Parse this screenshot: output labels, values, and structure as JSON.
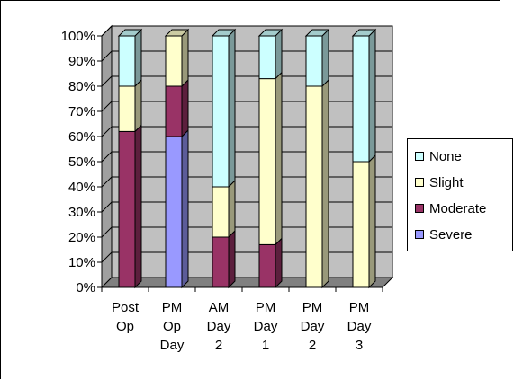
{
  "chart_data": {
    "type": "bar",
    "stacked": true,
    "percent": true,
    "categories": [
      [
        "Post",
        "Op"
      ],
      [
        "PM",
        "Op",
        "Day"
      ],
      [
        "AM",
        "Day",
        "2"
      ],
      [
        "PM",
        "Day",
        "1"
      ],
      [
        "PM",
        "Day",
        "2"
      ],
      [
        "PM",
        "Day",
        "3"
      ]
    ],
    "series": [
      {
        "name": "Severe",
        "color": "#9999ff",
        "values": [
          0,
          60,
          0,
          0,
          0,
          0
        ]
      },
      {
        "name": "Moderate",
        "color": "#993366",
        "values": [
          62,
          20,
          20,
          17,
          0,
          0
        ]
      },
      {
        "name": "Slight",
        "color": "#ffffcc",
        "values": [
          18,
          20,
          20,
          66,
          80,
          50
        ]
      },
      {
        "name": "None",
        "color": "#ccffff",
        "values": [
          20,
          0,
          60,
          17,
          20,
          50
        ]
      }
    ],
    "yticks": [
      "0%",
      "10%",
      "20%",
      "30%",
      "40%",
      "50%",
      "60%",
      "70%",
      "80%",
      "90%",
      "100%"
    ],
    "ylim": [
      0,
      100
    ],
    "legend_position": "right",
    "background": "#c0c0c0",
    "grid": true
  },
  "legend": {
    "items": [
      {
        "label": "None",
        "color": "#ccffff"
      },
      {
        "label": "Slight",
        "color": "#ffffcc"
      },
      {
        "label": "Moderate",
        "color": "#993366"
      },
      {
        "label": "Severe",
        "color": "#9999ff"
      }
    ]
  }
}
